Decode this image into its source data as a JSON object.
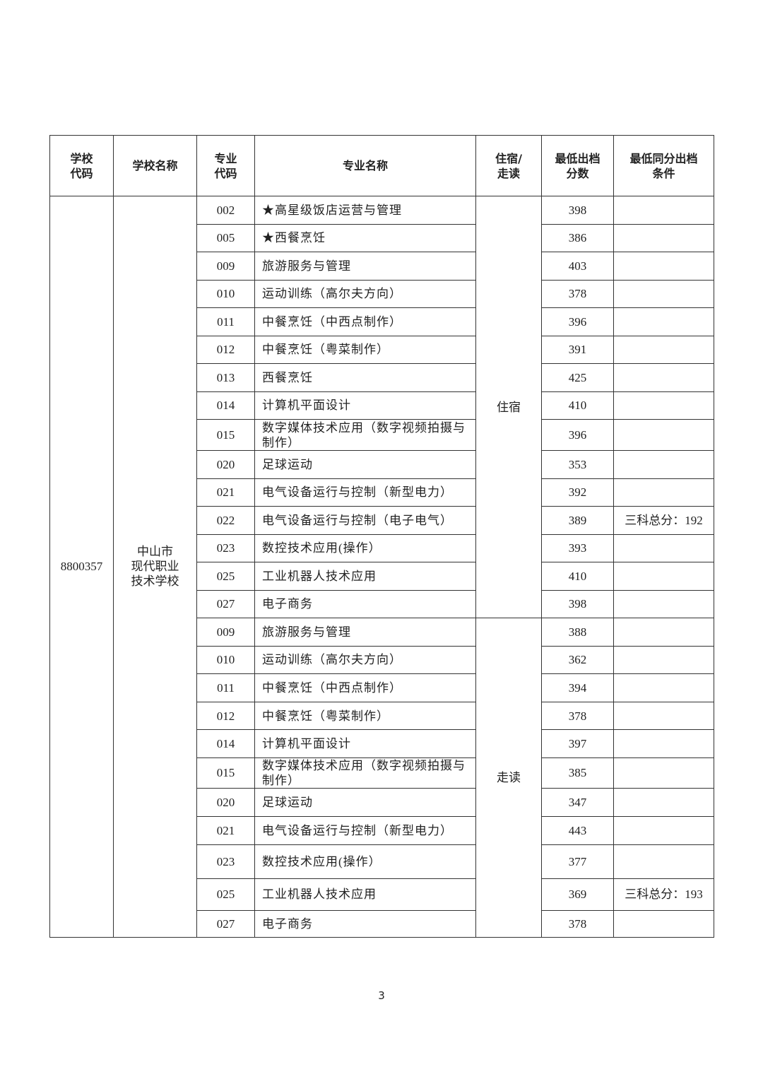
{
  "table": {
    "headers": [
      "学校\n代码",
      "学校名称",
      "专业\n代码",
      "专业名称",
      "住宿/\n走读",
      "最低出档\n分数",
      "最低同分出档\n条件"
    ],
    "school_code": "8800357",
    "school_name": "中山市\n现代职业\n技术学校",
    "groups": [
      {
        "mode": "住宿",
        "rows": [
          {
            "code": "002",
            "name": "★高星级饭店运营与管理",
            "score": 398
          },
          {
            "code": "005",
            "name": "★西餐烹饪",
            "score": 386
          },
          {
            "code": "009",
            "name": "旅游服务与管理",
            "score": 403
          },
          {
            "code": "010",
            "name": "运动训练（高尔夫方向）",
            "score": 378
          },
          {
            "code": "011",
            "name": "中餐烹饪（中西点制作）",
            "score": 396
          },
          {
            "code": "012",
            "name": "中餐烹饪（粤菜制作）",
            "score": 391
          },
          {
            "code": "013",
            "name": "西餐烹饪",
            "score": 425
          },
          {
            "code": "014",
            "name": "计算机平面设计",
            "score": 410
          },
          {
            "code": "015",
            "name": "数字媒体技术应用（数字视频拍摄与制作）",
            "score": 396
          },
          {
            "code": "020",
            "name": "足球运动",
            "score": 353
          },
          {
            "code": "021",
            "name": "电气设备运行与控制（新型电力）",
            "score": 392
          },
          {
            "code": "022",
            "name": "电气设备运行与控制（电子电气）",
            "score": 389,
            "condition": "三科总分：192"
          },
          {
            "code": "023",
            "name": "数控技术应用(操作）",
            "score": 393
          },
          {
            "code": "025",
            "name": "工业机器人技术应用",
            "score": 410
          },
          {
            "code": "027",
            "name": "电子商务",
            "score": 398
          }
        ]
      },
      {
        "mode": "走读",
        "rows": [
          {
            "code": "009",
            "name": "旅游服务与管理",
            "score": 388
          },
          {
            "code": "010",
            "name": "运动训练（高尔夫方向）",
            "score": 362
          },
          {
            "code": "011",
            "name": "中餐烹饪（中西点制作）",
            "score": 394
          },
          {
            "code": "012",
            "name": "中餐烹饪（粤菜制作）",
            "score": 378
          },
          {
            "code": "014",
            "name": "计算机平面设计",
            "score": 397
          },
          {
            "code": "015",
            "name": "数字媒体技术应用（数字视频拍摄与制作）",
            "score": 385
          },
          {
            "code": "020",
            "name": "足球运动",
            "score": 347
          },
          {
            "code": "021",
            "name": "电气设备运行与控制（新型电力）",
            "score": 443
          },
          {
            "code": "023",
            "name": "数控技术应用(操作）",
            "score": 377
          },
          {
            "code": "025",
            "name": "工业机器人技术应用",
            "score": 369,
            "condition": "三科总分：193"
          },
          {
            "code": "027",
            "name": "电子商务",
            "score": 378
          }
        ]
      }
    ]
  },
  "footer": {
    "page_number": "3"
  }
}
